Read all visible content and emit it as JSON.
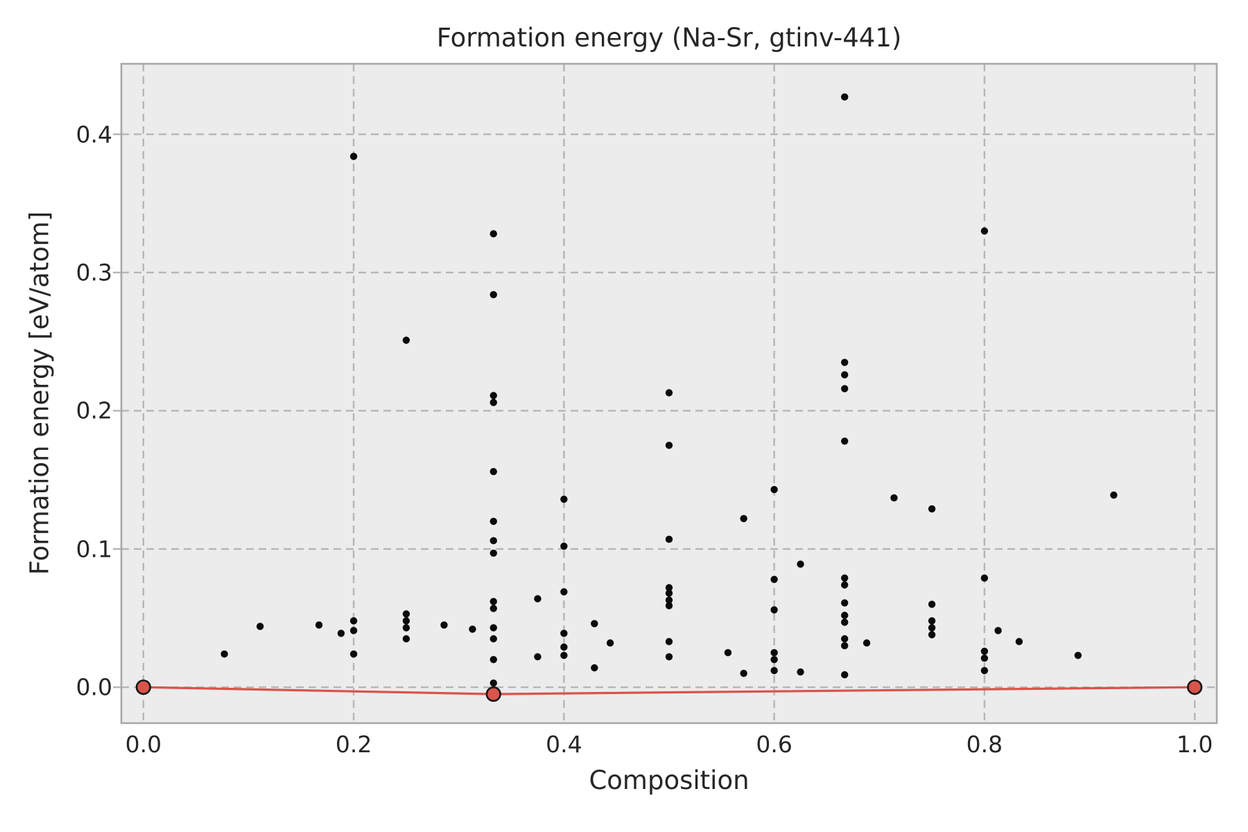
{
  "chart_data": {
    "type": "scatter",
    "title": "Formation energy (Na-Sr, gtinv-441)",
    "xlabel": "Composition",
    "ylabel": "Formation energy [eV/atom]",
    "xlim": [
      -0.021,
      1.021
    ],
    "ylim": [
      -0.026,
      0.451
    ],
    "grid": true,
    "grid_style": "dashed",
    "legend": "none",
    "xticks": [
      0.0,
      0.2,
      0.4,
      0.6,
      0.8,
      1.0
    ],
    "xtick_labels": [
      "0.0",
      "0.2",
      "0.4",
      "0.6",
      "0.8",
      "1.0"
    ],
    "yticks": [
      0.0,
      0.1,
      0.2,
      0.3,
      0.4
    ],
    "ytick_labels": [
      "0.0",
      "0.1",
      "0.2",
      "0.3",
      "0.4"
    ],
    "series": [
      {
        "name": "structure-energies",
        "type": "scatter",
        "color": "#0a0a0a",
        "points": [
          [
            0.077,
            0.024
          ],
          [
            0.111,
            0.044
          ],
          [
            0.167,
            0.045
          ],
          [
            0.188,
            0.039
          ],
          [
            0.2,
            0.384
          ],
          [
            0.2,
            0.048
          ],
          [
            0.2,
            0.041
          ],
          [
            0.2,
            0.024
          ],
          [
            0.25,
            0.251
          ],
          [
            0.25,
            0.053
          ],
          [
            0.25,
            0.048
          ],
          [
            0.25,
            0.043
          ],
          [
            0.25,
            0.035
          ],
          [
            0.286,
            0.045
          ],
          [
            0.313,
            0.042
          ],
          [
            0.333,
            0.328
          ],
          [
            0.333,
            0.284
          ],
          [
            0.333,
            0.211
          ],
          [
            0.333,
            0.206
          ],
          [
            0.333,
            0.156
          ],
          [
            0.333,
            0.12
          ],
          [
            0.333,
            0.106
          ],
          [
            0.333,
            0.097
          ],
          [
            0.333,
            0.062
          ],
          [
            0.333,
            0.057
          ],
          [
            0.333,
            0.043
          ],
          [
            0.333,
            0.035
          ],
          [
            0.333,
            0.02
          ],
          [
            0.333,
            0.003
          ],
          [
            0.375,
            0.064
          ],
          [
            0.375,
            0.022
          ],
          [
            0.4,
            0.136
          ],
          [
            0.4,
            0.102
          ],
          [
            0.4,
            0.069
          ],
          [
            0.4,
            0.039
          ],
          [
            0.4,
            0.029
          ],
          [
            0.4,
            0.023
          ],
          [
            0.429,
            0.046
          ],
          [
            0.429,
            0.014
          ],
          [
            0.444,
            0.032
          ],
          [
            0.5,
            0.213
          ],
          [
            0.5,
            0.175
          ],
          [
            0.5,
            0.107
          ],
          [
            0.5,
            0.072
          ],
          [
            0.5,
            0.068
          ],
          [
            0.5,
            0.063
          ],
          [
            0.5,
            0.059
          ],
          [
            0.5,
            0.033
          ],
          [
            0.5,
            0.022
          ],
          [
            0.556,
            0.025
          ],
          [
            0.571,
            0.122
          ],
          [
            0.571,
            0.01
          ],
          [
            0.6,
            0.143
          ],
          [
            0.6,
            0.078
          ],
          [
            0.6,
            0.056
          ],
          [
            0.6,
            0.025
          ],
          [
            0.6,
            0.02
          ],
          [
            0.6,
            0.012
          ],
          [
            0.625,
            0.089
          ],
          [
            0.625,
            0.011
          ],
          [
            0.667,
            0.427
          ],
          [
            0.667,
            0.235
          ],
          [
            0.667,
            0.226
          ],
          [
            0.667,
            0.216
          ],
          [
            0.667,
            0.178
          ],
          [
            0.667,
            0.079
          ],
          [
            0.667,
            0.074
          ],
          [
            0.667,
            0.061
          ],
          [
            0.667,
            0.052
          ],
          [
            0.667,
            0.047
          ],
          [
            0.667,
            0.035
          ],
          [
            0.667,
            0.03
          ],
          [
            0.667,
            0.009
          ],
          [
            0.688,
            0.032
          ],
          [
            0.714,
            0.137
          ],
          [
            0.75,
            0.129
          ],
          [
            0.75,
            0.06
          ],
          [
            0.75,
            0.048
          ],
          [
            0.75,
            0.043
          ],
          [
            0.75,
            0.038
          ],
          [
            0.8,
            0.33
          ],
          [
            0.8,
            0.079
          ],
          [
            0.8,
            0.026
          ],
          [
            0.8,
            0.021
          ],
          [
            0.8,
            0.012
          ],
          [
            0.813,
            0.041
          ],
          [
            0.833,
            0.033
          ],
          [
            0.889,
            0.023
          ],
          [
            0.923,
            0.139
          ]
        ]
      },
      {
        "name": "convex-hull",
        "type": "line-with-markers",
        "color": "#d9544b",
        "marker_edge_color": "#141414",
        "points": [
          [
            0.0,
            0.0
          ],
          [
            0.333,
            -0.005
          ],
          [
            1.0,
            0.0
          ]
        ]
      }
    ]
  },
  "colors": {
    "figure_bg": "#ffffff",
    "plot_bg": "#ececec",
    "grid": "#b5b5b5",
    "spine": "#a8a8a8",
    "text": "#262626",
    "scatter": "#0a0a0a",
    "hull": "#d9544b"
  }
}
